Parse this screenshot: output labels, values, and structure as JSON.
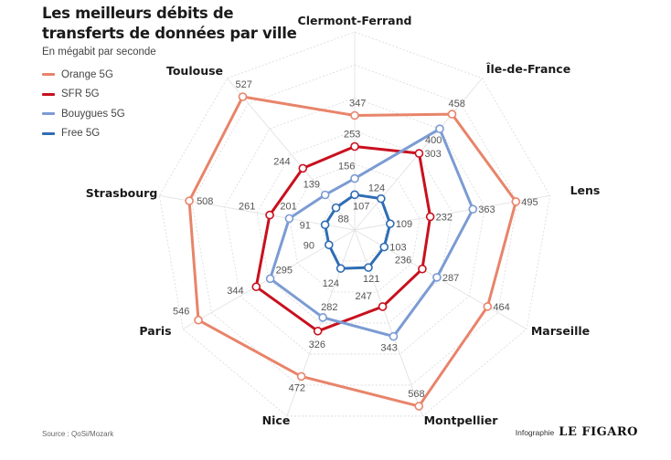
{
  "header": {
    "title_line1": "Les meilleurs débits de",
    "title_line2": "transferts de données par ville",
    "subtitle": "En mégabit par seconde"
  },
  "footer": {
    "source": "Source : QoSi/Mozark",
    "credit_label": "Infographie",
    "credit_brand": "LE FIGARO"
  },
  "chart_data": {
    "type": "radar",
    "title": "Les meilleurs débits de transferts de données par ville",
    "subtitle": "En mégabit par seconde",
    "unit": "Mbit/s",
    "categories": [
      "Clermont-Ferrand",
      "Île-de-France",
      "Lens",
      "Marseille",
      "Montpellier",
      "Nice",
      "Paris",
      "Strasbourg",
      "Toulouse"
    ],
    "range": [
      0,
      600
    ],
    "grid_step": 100,
    "grid": true,
    "legend_position": "top-left",
    "series": [
      {
        "name": "Orange 5G",
        "color": "#e8846a",
        "values": [
          347,
          458,
          495,
          464,
          568,
          472,
          546,
          508,
          527
        ]
      },
      {
        "name": "SFR 5G",
        "color": "#c8101e",
        "values": [
          253,
          303,
          232,
          236,
          247,
          326,
          344,
          261,
          244
        ]
      },
      {
        "name": "Bouygues 5G",
        "color": "#7b9bd3",
        "values": [
          156,
          400,
          363,
          287,
          343,
          282,
          295,
          201,
          139
        ]
      },
      {
        "name": "Free 5G",
        "color": "#2e6db4",
        "values": [
          107,
          124,
          109,
          103,
          121,
          124,
          90,
          91,
          88
        ]
      }
    ]
  }
}
